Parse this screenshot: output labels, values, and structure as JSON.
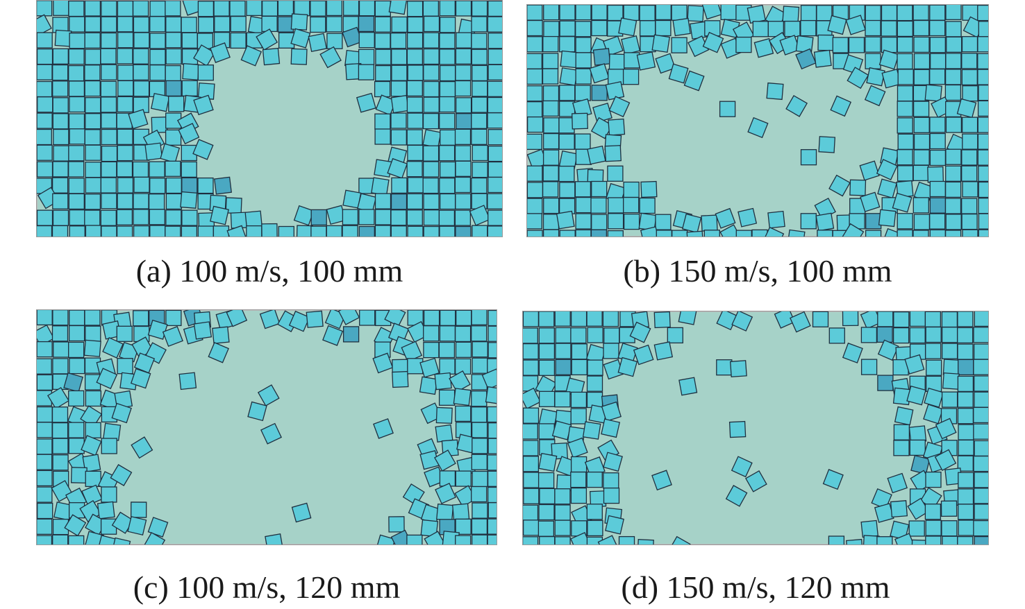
{
  "figure": {
    "panels": [
      {
        "id": "a",
        "caption": "(a) 100 m/s, 100 mm"
      },
      {
        "id": "b",
        "caption": "(b) 150 m/s, 100 mm"
      },
      {
        "id": "c",
        "caption": "(c) 100 m/s, 120 mm"
      },
      {
        "id": "d",
        "caption": "(d) 150 m/s, 120 mm"
      }
    ],
    "colors": {
      "tile_fill": "#5ccbd9",
      "tile_fill_dark": "#4aa8c2",
      "tile_edge": "#1f2f3f",
      "plate_background": "#a6d2c8",
      "plate_border": "#b9b9b9"
    }
  }
}
